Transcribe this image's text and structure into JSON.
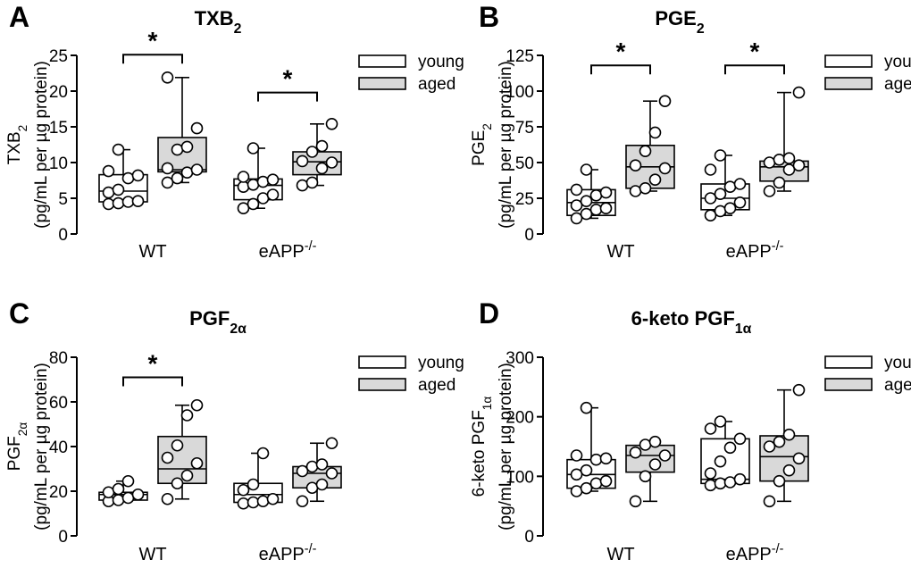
{
  "figure": {
    "legend": {
      "young": "young",
      "aged": "aged"
    },
    "colors": {
      "young": "#ffffff",
      "aged": "#d9d9d9",
      "stroke": "#000000"
    }
  },
  "chart_data": [
    {
      "type": "box",
      "panel": "A",
      "title": "TXB",
      "title_sub": "2",
      "ylabel_main": "TXB",
      "ylabel_main_sub": "2",
      "ylabel_unit": "(pg/mL per µg protein)",
      "ylim": [
        0,
        25
      ],
      "yticks": [
        0,
        5,
        10,
        15,
        20,
        25
      ],
      "categories": [
        {
          "label": "WT",
          "sup": ""
        },
        {
          "label": "eAPP",
          "sup": "-/-"
        }
      ],
      "series": [
        {
          "name": "young",
          "group": 0,
          "min": 4.2,
          "q1": 4.5,
          "median": 6.0,
          "q3": 8.3,
          "max": 11.8,
          "points": [
            4.2,
            4.3,
            4.5,
            4.6,
            5.8,
            6.2,
            7.8,
            8.2,
            8.8,
            11.8
          ]
        },
        {
          "name": "aged",
          "group": 0,
          "min": 7.2,
          "q1": 8.7,
          "median": 9.0,
          "q3": 13.5,
          "max": 21.9,
          "points": [
            7.2,
            7.8,
            8.6,
            9.0,
            9.2,
            11.8,
            12.2,
            14.8,
            21.9
          ]
        },
        {
          "name": "young",
          "group": 1,
          "min": 3.6,
          "q1": 4.8,
          "median": 6.8,
          "q3": 7.7,
          "max": 12.0,
          "points": [
            3.6,
            4.2,
            5.0,
            5.5,
            6.6,
            6.9,
            7.3,
            7.6,
            8.0,
            12.0
          ]
        },
        {
          "name": "aged",
          "group": 1,
          "min": 6.8,
          "q1": 8.3,
          "median": 10.1,
          "q3": 11.5,
          "max": 15.4,
          "points": [
            6.8,
            7.2,
            9.2,
            10.0,
            10.2,
            11.5,
            12.3,
            15.4
          ]
        }
      ],
      "significance": [
        {
          "group": 0,
          "y": 25.1,
          "label": "*"
        },
        {
          "group": 1,
          "y": 19.8,
          "label": "*"
        }
      ]
    },
    {
      "type": "box",
      "panel": "B",
      "title": "PGE",
      "title_sub": "2",
      "ylabel_main": "PGE",
      "ylabel_main_sub": "2",
      "ylabel_unit": "(pg/mL per µg protein)",
      "ylim": [
        0,
        125
      ],
      "yticks": [
        0,
        25,
        50,
        75,
        100,
        125
      ],
      "categories": [
        {
          "label": "WT",
          "sup": ""
        },
        {
          "label": "eAPP",
          "sup": "-/-"
        }
      ],
      "series": [
        {
          "name": "young",
          "group": 0,
          "min": 11,
          "q1": 13,
          "median": 22,
          "q3": 31,
          "max": 45,
          "points": [
            11,
            14,
            17,
            18,
            20,
            23,
            27,
            29,
            31,
            45
          ]
        },
        {
          "name": "aged",
          "group": 0,
          "min": 30,
          "q1": 32,
          "median": 47,
          "q3": 62,
          "max": 93,
          "points": [
            30,
            32,
            38,
            46,
            48,
            58,
            71,
            93
          ]
        },
        {
          "name": "young",
          "group": 1,
          "min": 13,
          "q1": 17,
          "median": 25,
          "q3": 35,
          "max": 55,
          "points": [
            13,
            16,
            18,
            22,
            25,
            28,
            33,
            35,
            45,
            55
          ]
        },
        {
          "name": "aged",
          "group": 1,
          "min": 30,
          "q1": 37,
          "median": 47,
          "q3": 51,
          "max": 99,
          "points": [
            30,
            36,
            45,
            48,
            50,
            52,
            53,
            99
          ]
        }
      ],
      "significance": [
        {
          "group": 0,
          "y": 118,
          "label": "*"
        },
        {
          "group": 1,
          "y": 118,
          "label": "*"
        }
      ]
    },
    {
      "type": "box",
      "panel": "C",
      "title": "PGF",
      "title_sub": "2α",
      "ylabel_main": "PGF",
      "ylabel_main_sub": "2α",
      "ylabel_unit": "(pg/mL per µg protein)",
      "ylim": [
        0,
        80
      ],
      "yticks": [
        0,
        20,
        40,
        60,
        80
      ],
      "categories": [
        {
          "label": "WT",
          "sup": ""
        },
        {
          "label": "eAPP",
          "sup": "-/-"
        }
      ],
      "series": [
        {
          "name": "young",
          "group": 0,
          "min": 15.5,
          "q1": 16.0,
          "median": 18.5,
          "q3": 19.5,
          "max": 24.5,
          "points": [
            15.5,
            16.0,
            17.0,
            18.5,
            19.5,
            21.0,
            24.5
          ]
        },
        {
          "name": "aged",
          "group": 0,
          "min": 16.5,
          "q1": 23.5,
          "median": 30.0,
          "q3": 44.5,
          "max": 58.5,
          "points": [
            16.5,
            23.5,
            27.0,
            32.5,
            35.0,
            40.5,
            54.0,
            58.5
          ]
        },
        {
          "name": "young",
          "group": 1,
          "min": 14.5,
          "q1": 15.0,
          "median": 18.5,
          "q3": 23.5,
          "max": 37.0,
          "points": [
            14.5,
            15.0,
            15.5,
            16.5,
            20.5,
            23.0,
            37.0
          ]
        },
        {
          "name": "aged",
          "group": 1,
          "min": 15.5,
          "q1": 21.5,
          "median": 28.0,
          "q3": 31.0,
          "max": 41.5,
          "points": [
            15.5,
            21.5,
            23.0,
            28.0,
            29.0,
            31.0,
            32.0,
            41.5
          ]
        }
      ],
      "significance": [
        {
          "group": 0,
          "y": 71,
          "label": "*"
        }
      ]
    },
    {
      "type": "box",
      "panel": "D",
      "title": "6-keto PGF",
      "title_sub": "1α",
      "ylabel_main": "6-keto PGF",
      "ylabel_main_sub": "1α",
      "ylabel_unit": "(pg/mL per µg protein)",
      "ylim": [
        0,
        300
      ],
      "yticks": [
        0,
        100,
        200,
        300
      ],
      "categories": [
        {
          "label": "WT",
          "sup": ""
        },
        {
          "label": "eAPP",
          "sup": "-/-"
        }
      ],
      "series": [
        {
          "name": "young",
          "group": 0,
          "min": 75,
          "q1": 80,
          "median": 103,
          "q3": 128,
          "max": 215,
          "points": [
            75,
            80,
            88,
            92,
            103,
            110,
            128,
            130,
            135,
            215
          ]
        },
        {
          "name": "aged",
          "group": 0,
          "min": 58,
          "q1": 107,
          "median": 135,
          "q3": 152,
          "max": 158,
          "points": [
            58,
            100,
            120,
            135,
            140,
            153,
            158
          ]
        },
        {
          "name": "young",
          "group": 1,
          "min": 85,
          "q1": 88,
          "median": 95,
          "q3": 163,
          "max": 192,
          "points": [
            85,
            88,
            90,
            95,
            105,
            125,
            148,
            163,
            180,
            192
          ]
        },
        {
          "name": "aged",
          "group": 1,
          "min": 58,
          "q1": 92,
          "median": 133,
          "q3": 168,
          "max": 245,
          "points": [
            58,
            92,
            110,
            130,
            150,
            158,
            170,
            245
          ]
        }
      ],
      "significance": []
    }
  ]
}
